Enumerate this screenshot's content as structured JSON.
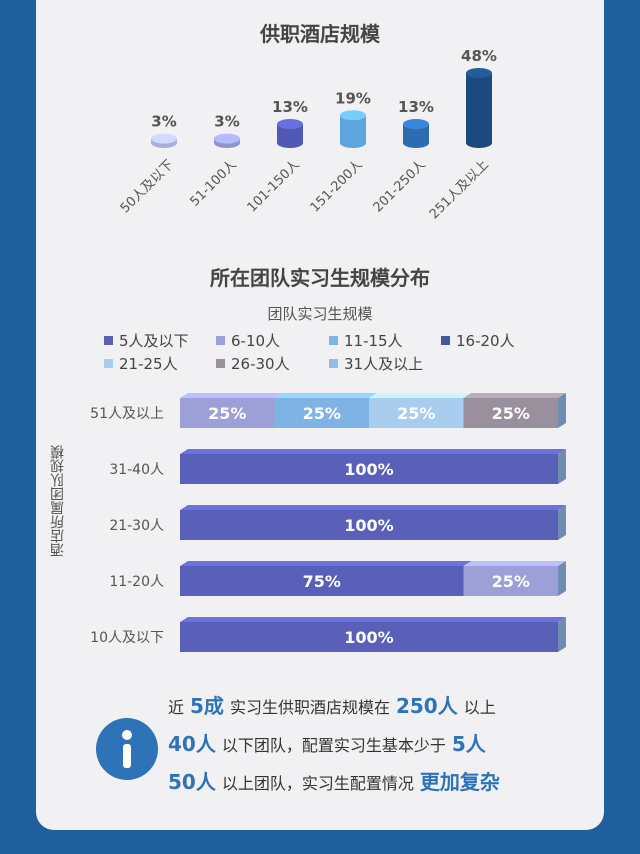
{
  "chart_data": [
    {
      "type": "bar",
      "title": "供职酒店规模",
      "categories": [
        "50人及以下",
        "51-100人",
        "101-150人",
        "151-200人",
        "201-250人",
        "251人及以上"
      ],
      "values": [
        3,
        3,
        13,
        19,
        13,
        48
      ],
      "value_labels": [
        "3%",
        "3%",
        "13%",
        "19%",
        "13%",
        "48%"
      ],
      "unit": "%",
      "colors": [
        "#a9aed6",
        "#9095c9",
        "#5259b4",
        "#5ea5e0",
        "#2e6bb0",
        "#1d4a7c"
      ]
    },
    {
      "type": "bar",
      "orientation": "horizontal",
      "stacked": true,
      "title": "所在团队实习生规模分布",
      "legend_title": "团队实习生规模",
      "ylabel": "酒店所属团队规模",
      "categories": [
        "51人及以上",
        "31-40人",
        "21-30人",
        "11-20人",
        "10人及以下"
      ],
      "series": [
        {
          "name": "5人及以下",
          "color": "#5a60b8",
          "values": [
            0,
            100,
            100,
            75,
            100
          ]
        },
        {
          "name": "6-10人",
          "color": "#9ca0d6",
          "values": [
            25,
            0,
            0,
            25,
            0
          ]
        },
        {
          "name": "11-15人",
          "color": "#7fb3e6",
          "values": [
            25,
            0,
            0,
            0,
            0
          ]
        },
        {
          "name": "16-20人",
          "color": "#3e5b9a",
          "values": [
            0,
            0,
            0,
            0,
            0
          ]
        },
        {
          "name": "21-25人",
          "color": "#a9cdef",
          "values": [
            25,
            0,
            0,
            0,
            0
          ]
        },
        {
          "name": "26-30人",
          "color": "#9a8f9c",
          "values": [
            25,
            0,
            0,
            0,
            0
          ]
        },
        {
          "name": "31人及以上",
          "color": "#93bde6",
          "values": [
            0,
            0,
            0,
            0,
            0
          ]
        }
      ],
      "xlim": [
        0,
        100
      ]
    }
  ],
  "note": {
    "line1": {
      "pre": "近",
      "em1": "5成",
      "mid": "实习生供职酒店规模在",
      "em2": "250人",
      "post": "以上"
    },
    "line2": {
      "em1": "40人",
      "mid": "以下团队，配置实习生基本少于",
      "em2": "5人"
    },
    "line3": {
      "em1": "50人",
      "mid": "以上团队，实习生配置情况",
      "em2": "更加复杂"
    }
  }
}
